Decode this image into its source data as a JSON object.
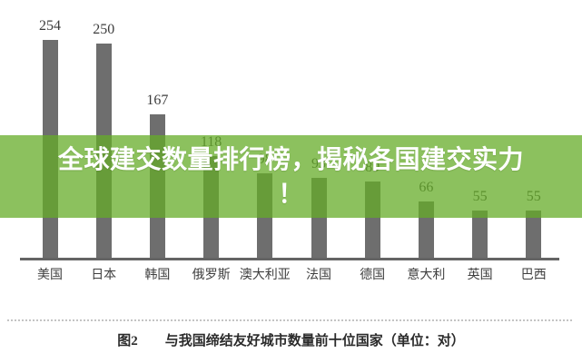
{
  "overlay": {
    "headline_line1": "全球建交数量排行榜，揭秘各国建交实力",
    "headline_line2": "！",
    "background_rgba": "rgba(102,172,40,0.75)",
    "text_color": "#ffffff"
  },
  "chart_data": {
    "type": "bar",
    "categories": [
      "美国",
      "日本",
      "韩国",
      "俄罗斯",
      "澳大利亚",
      "法国",
      "德国",
      "意大利",
      "英国",
      "巴西"
    ],
    "values": [
      254,
      250,
      167,
      118,
      98,
      93,
      89,
      66,
      55,
      55
    ],
    "figure_label": "图2",
    "caption": "与我国缔结友好城市数量前十位国家（单位：对）",
    "unit": "对",
    "xlabel": "",
    "ylabel": "",
    "ylim": [
      0,
      270
    ],
    "grid": false,
    "legend": false,
    "bar_color": "#6e6e6e",
    "value_label_color": "#3c3c3c",
    "axis_line_color": "#646464"
  }
}
